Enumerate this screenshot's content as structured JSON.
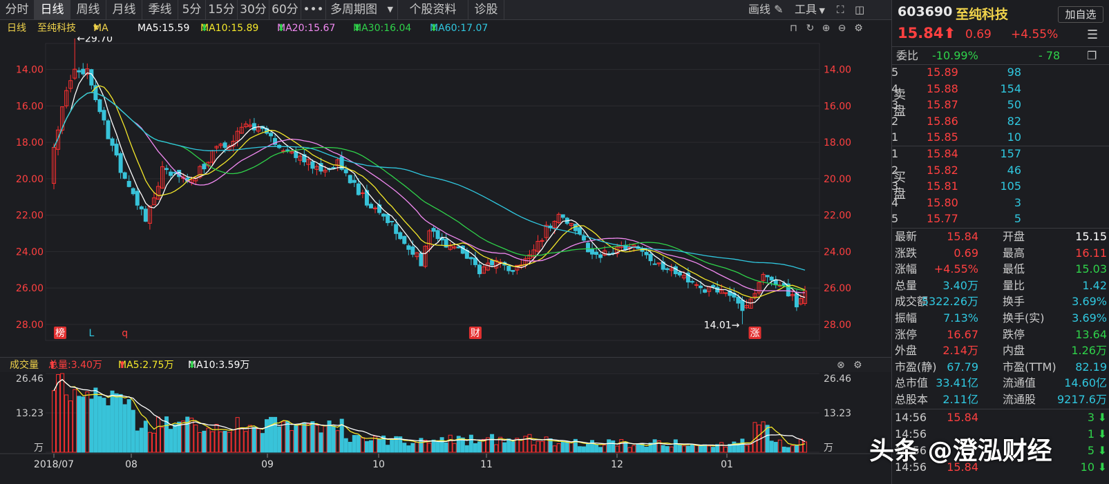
{
  "toolbar": {
    "tabs": [
      "分时",
      "日线",
      "周线",
      "月线",
      "季线",
      "5分",
      "15分",
      "30分",
      "60分"
    ],
    "more": "•••",
    "multi": "多周期图",
    "stock_info": "个股资料",
    "diagnose": "诊股",
    "draw": "画线",
    "tools": "工具"
  },
  "ma_bar": {
    "period": "日线",
    "name": "至纯科技",
    "ma": "MA",
    "ma5": "MA5:15.59",
    "ma10": "MA10:15.89",
    "ma20": "MA20:15.67",
    "ma30": "MA30:16.04",
    "ma60": "MA60:17.07"
  },
  "kline": {
    "high_label": "←29.70",
    "low_label": "14.01→",
    "markers": [
      "榜",
      "L",
      "q",
      "财",
      "涨"
    ],
    "y_ticks": [
      "28.00",
      "26.00",
      "24.00",
      "22.00",
      "20.00",
      "18.00",
      "16.00",
      "14.00"
    ]
  },
  "volume_bar": {
    "label": "成交量",
    "total": "总量:3.40万",
    "ma5": "MA5:2.75万",
    "ma10": "MA10:3.59万",
    "ticks": [
      "26.46",
      "13.23",
      "万"
    ]
  },
  "x_labels": [
    "2018/07",
    "08",
    "09",
    "10",
    "11",
    "12",
    "01"
  ],
  "colors": {
    "up": "#ff3030",
    "down": "#38c3d9",
    "ma5": "#ffffff",
    "ma10": "#f5e82a",
    "ma20": "#f28af2",
    "ma30": "#2fd34a",
    "ma60": "#30c8e0",
    "grid": "#2b2c31"
  },
  "quote": {
    "code": "603690",
    "name": "至纯科技",
    "add": "加自选",
    "price": "15.84",
    "change": "0.69",
    "pct": "+4.55%",
    "weibi_label": "委比",
    "weibi": "-10.99%",
    "weicha": "- 78",
    "sell_label": "卖盘",
    "buy_label": "买盘",
    "sell": [
      [
        "5",
        "15.89",
        "98"
      ],
      [
        "4",
        "15.88",
        "154"
      ],
      [
        "3",
        "15.87",
        "50"
      ],
      [
        "2",
        "15.86",
        "82"
      ],
      [
        "1",
        "15.85",
        "10"
      ]
    ],
    "buy": [
      [
        "1",
        "15.84",
        "157"
      ],
      [
        "2",
        "15.82",
        "46"
      ],
      [
        "3",
        "15.81",
        "105"
      ],
      [
        "4",
        "15.80",
        "3"
      ],
      [
        "5",
        "15.77",
        "5"
      ]
    ],
    "stats": [
      [
        "最新",
        "15.84",
        "开盘",
        "15.15"
      ],
      [
        "涨跌",
        "0.69",
        "最高",
        "16.11"
      ],
      [
        "涨幅",
        "+4.55%",
        "最低",
        "15.03"
      ],
      [
        "总量",
        "3.40万",
        "量比",
        "1.42"
      ],
      [
        "成交额",
        "5322.26万",
        "换手",
        "3.69%"
      ],
      [
        "振幅",
        "7.13%",
        "换手(实)",
        "3.69%"
      ],
      [
        "涨停",
        "16.67",
        "跌停",
        "13.64"
      ],
      [
        "外盘",
        "2.14万",
        "内盘",
        "1.26万"
      ],
      [
        "市盈(静)",
        "67.79",
        "市盈(TTM)",
        "82.19"
      ],
      [
        "总市值",
        "33.41亿",
        "流通值",
        "14.60亿"
      ],
      [
        "总股本",
        "2.11亿",
        "流通股",
        "9217.6万"
      ]
    ],
    "trades": [
      [
        "14:56",
        "15.84",
        "3"
      ],
      [
        "14:56",
        "",
        "1"
      ],
      [
        "14:56",
        "",
        "5"
      ],
      [
        "14:56",
        "15.84",
        "10"
      ]
    ]
  },
  "watermark": "头条 @澄泓财经",
  "chart_data": {
    "type": "candlestick",
    "x_axis": [
      "2018/07",
      "08",
      "09",
      "10",
      "11",
      "12",
      "01"
    ],
    "ylim": [
      13.5,
      29.5
    ],
    "y_ticks": [
      14,
      16,
      18,
      20,
      22,
      24,
      26,
      28
    ],
    "volume_ylim": [
      0,
      26.46
    ],
    "anchors": [
      [
        0,
        23.5
      ],
      [
        3,
        27.0
      ],
      [
        5,
        28.2
      ],
      [
        8,
        27.8
      ],
      [
        12,
        25.0
      ],
      [
        16,
        22.4
      ],
      [
        20,
        20.6
      ],
      [
        22,
        19.6
      ],
      [
        26,
        22.5
      ],
      [
        30,
        22.2
      ],
      [
        33,
        21.8
      ],
      [
        38,
        23.4
      ],
      [
        42,
        24.0
      ],
      [
        46,
        25.2
      ],
      [
        52,
        24.2
      ],
      [
        56,
        23.4
      ],
      [
        60,
        23.0
      ],
      [
        64,
        22.6
      ],
      [
        68,
        22.8
      ],
      [
        72,
        21.6
      ],
      [
        76,
        20.4
      ],
      [
        80,
        19.8
      ],
      [
        84,
        18.6
      ],
      [
        88,
        17.4
      ],
      [
        90,
        19.2
      ],
      [
        94,
        18.4
      ],
      [
        98,
        17.8
      ],
      [
        102,
        17.0
      ],
      [
        106,
        17.6
      ],
      [
        110,
        16.8
      ],
      [
        114,
        17.6
      ],
      [
        118,
        19.2
      ],
      [
        122,
        20.0
      ],
      [
        125,
        19.2
      ],
      [
        128,
        18.2
      ],
      [
        132,
        17.8
      ],
      [
        136,
        18.3
      ],
      [
        140,
        18.2
      ],
      [
        144,
        17.4
      ],
      [
        148,
        16.8
      ],
      [
        152,
        16.4
      ],
      [
        156,
        16.0
      ],
      [
        160,
        15.7
      ],
      [
        164,
        15.2
      ],
      [
        166,
        14.8
      ],
      [
        168,
        15.8
      ],
      [
        170,
        16.8
      ],
      [
        174,
        16.1
      ],
      [
        176,
        15.8
      ],
      [
        178,
        15.1
      ],
      [
        180,
        15.84
      ]
    ],
    "ma_current": {
      "MA5": 15.59,
      "MA10": 15.89,
      "MA20": 15.67,
      "MA30": 16.04,
      "MA60": 17.07
    }
  }
}
